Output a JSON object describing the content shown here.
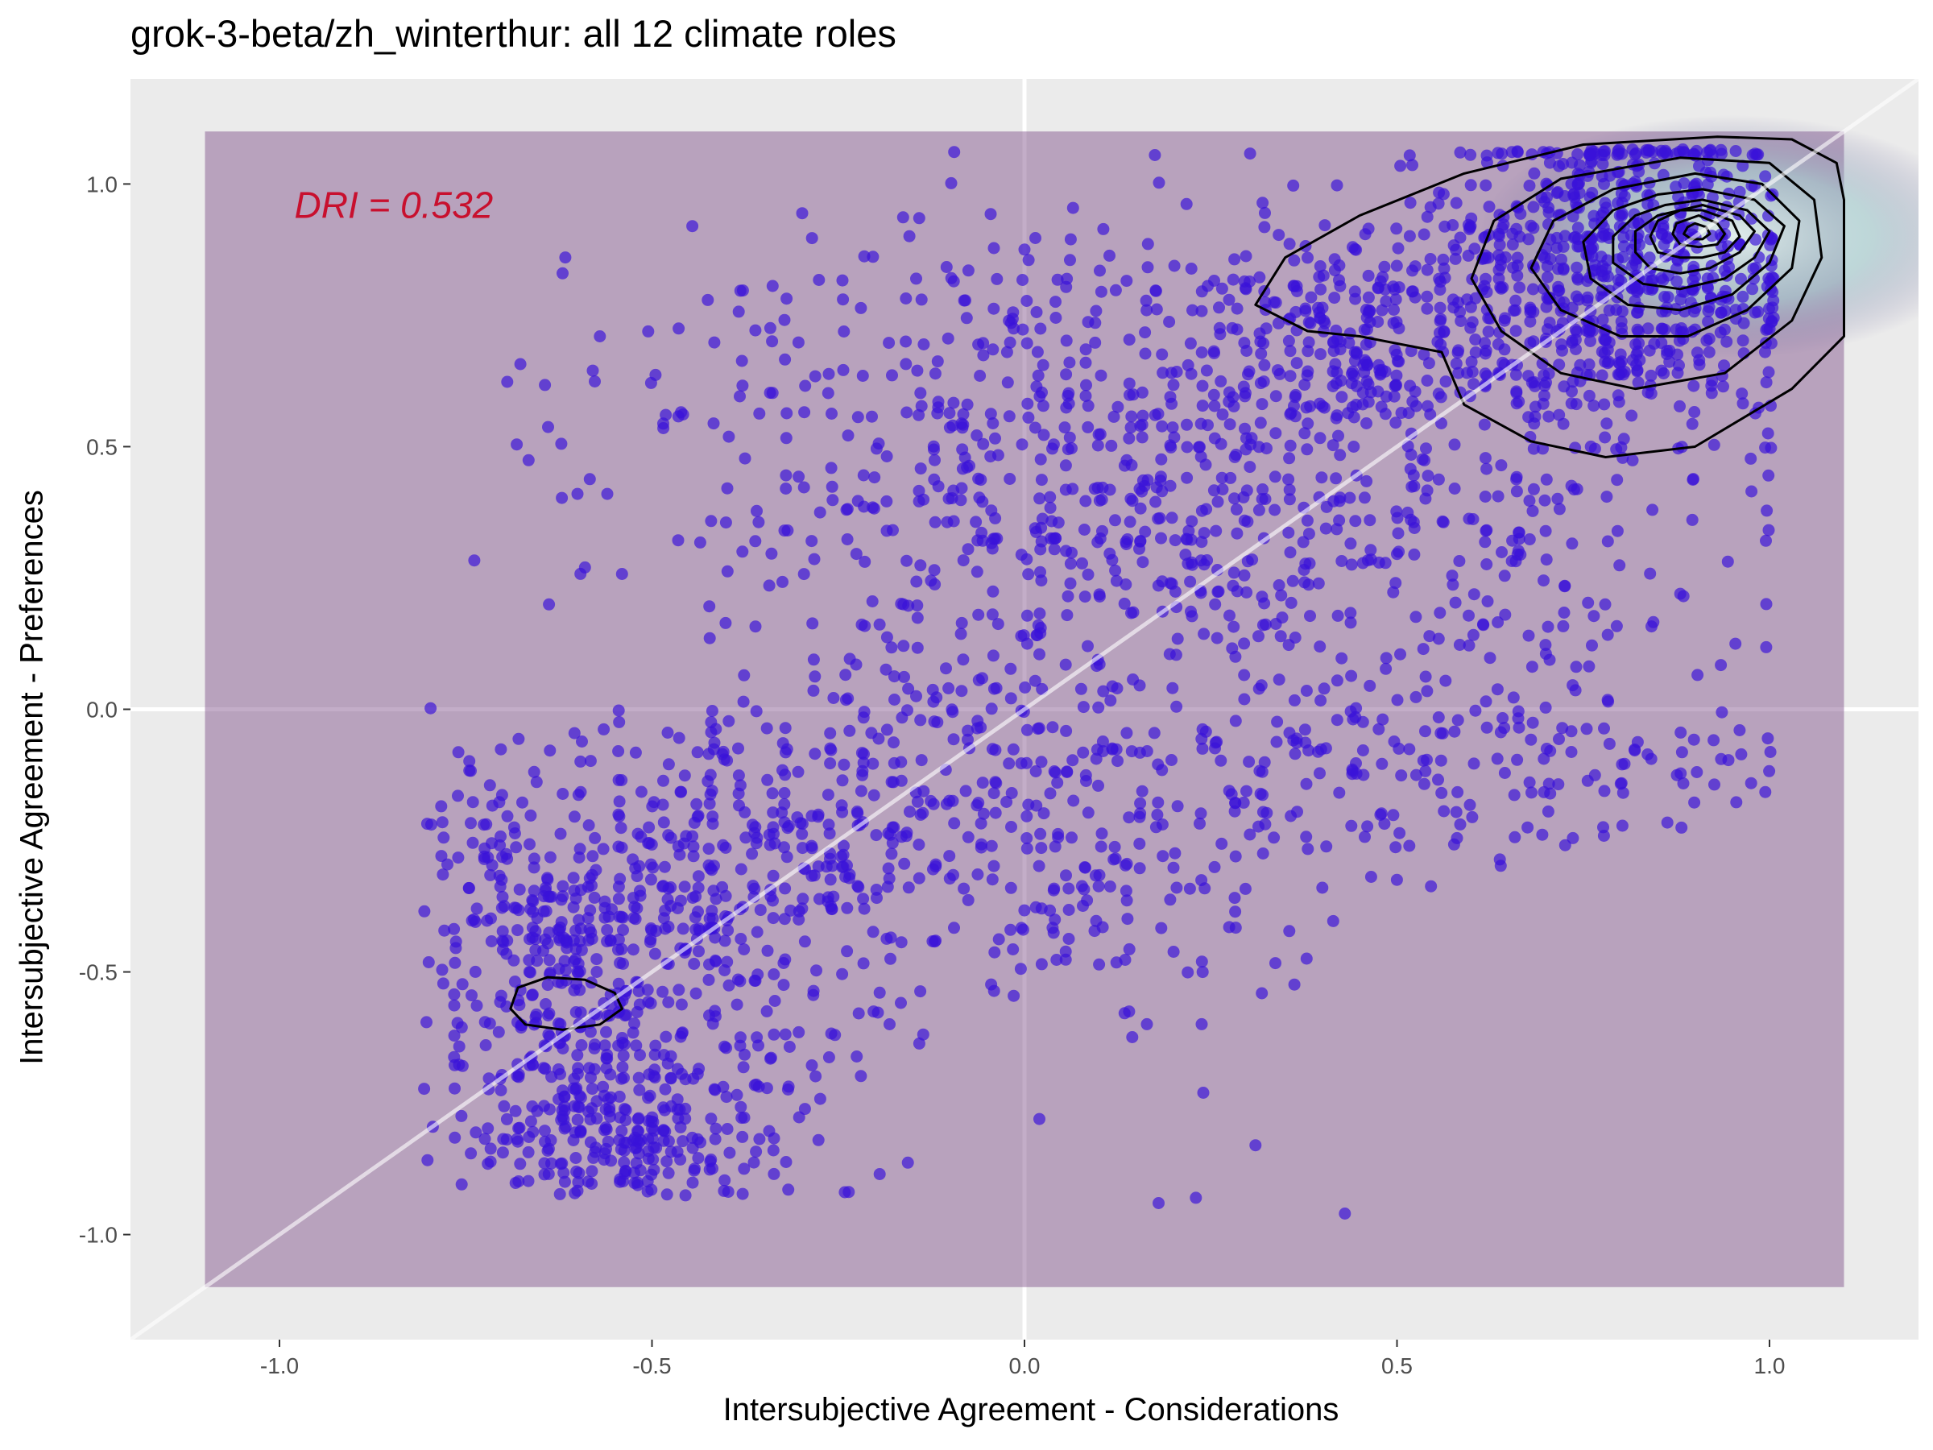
{
  "chart_data": {
    "type": "scatter",
    "title": "grok-3-beta/zh_winterthur: all 12 climate roles",
    "xlabel": "Intersubjective Agreement - Considerations",
    "ylabel": "Intersubjective Agreement - Preferences",
    "xlim": [
      -1.2,
      1.2
    ],
    "ylim": [
      -1.2,
      1.2
    ],
    "x_ticks": [
      "-1.0",
      "-0.5",
      "0.0",
      "0.5",
      "1.0"
    ],
    "y_ticks": [
      "-1.0",
      "-0.5",
      "0.0",
      "0.5",
      "1.0"
    ],
    "x_tick_values": [
      -1.0,
      -0.5,
      0.0,
      0.5,
      1.0
    ],
    "y_tick_values": [
      -1.0,
      -0.5,
      0.0,
      0.5,
      1.0
    ],
    "annotation": "DRI = 0.532",
    "annotation_pos": {
      "x": -0.98,
      "y": 0.96
    },
    "shaded_region": {
      "x": [
        -1.1,
        1.1
      ],
      "y": [
        -1.1,
        1.1
      ],
      "color": "#7b4a85"
    },
    "reference_line": {
      "slope": 1,
      "intercept": 0
    },
    "grid": true,
    "point_color": "#3a12d8",
    "clusters": [
      {
        "cx": 0.8,
        "cy": 0.85,
        "sx": 0.12,
        "sy": 0.15,
        "n": 700
      },
      {
        "cx": 0.45,
        "cy": 0.7,
        "sx": 0.13,
        "sy": 0.12,
        "n": 260
      },
      {
        "cx": 0.05,
        "cy": 0.62,
        "sx": 0.32,
        "sy": 0.16,
        "n": 360
      },
      {
        "cx": 0.05,
        "cy": 0.32,
        "sx": 0.22,
        "sy": 0.12,
        "n": 250
      },
      {
        "cx": 0.55,
        "cy": 0.25,
        "sx": 0.22,
        "sy": 0.2,
        "n": 260
      },
      {
        "cx": 0.55,
        "cy": -0.12,
        "sx": 0.22,
        "sy": 0.08,
        "n": 150
      },
      {
        "cx": -0.05,
        "cy": 0.05,
        "sx": 0.12,
        "sy": 0.1,
        "n": 70
      },
      {
        "cx": -0.15,
        "cy": -0.22,
        "sx": 0.22,
        "sy": 0.15,
        "n": 240
      },
      {
        "cx": 0.15,
        "cy": -0.35,
        "sx": 0.15,
        "sy": 0.15,
        "n": 100
      },
      {
        "cx": -0.4,
        "cy": -0.4,
        "sx": 0.12,
        "sy": 0.22,
        "n": 280
      },
      {
        "cx": -0.62,
        "cy": -0.52,
        "sx": 0.09,
        "sy": 0.16,
        "n": 340
      },
      {
        "cx": -0.55,
        "cy": -0.8,
        "sx": 0.12,
        "sy": 0.06,
        "n": 200
      },
      {
        "cx": -0.72,
        "cy": -0.22,
        "sx": 0.05,
        "sy": 0.1,
        "n": 40
      }
    ],
    "outliers": [
      {
        "x": -0.62,
        "y": 0.83
      },
      {
        "x": -0.57,
        "y": 0.71
      },
      {
        "x": -0.6,
        "y": 0.41
      },
      {
        "x": -0.56,
        "y": 0.41
      },
      {
        "x": -0.59,
        "y": 0.27
      },
      {
        "x": 0.18,
        "y": -0.94
      },
      {
        "x": 0.23,
        "y": -0.93
      },
      {
        "x": 0.43,
        "y": -0.96
      },
      {
        "x": 0.31,
        "y": -0.83
      },
      {
        "x": 0.02,
        "y": -0.78
      },
      {
        "x": 0.24,
        "y": -0.73
      }
    ],
    "density_contours": [
      {
        "points": [
          [
            0.93,
            1.09
          ],
          [
            1.03,
            1.085
          ],
          [
            1.09,
            1.04
          ],
          [
            1.1,
            0.97
          ],
          [
            1.1,
            0.86
          ],
          [
            1.1,
            0.71
          ],
          [
            1.03,
            0.61
          ],
          [
            0.9,
            0.5
          ],
          [
            0.78,
            0.48
          ],
          [
            0.68,
            0.51
          ],
          [
            0.59,
            0.58
          ],
          [
            0.56,
            0.68
          ],
          [
            0.45,
            0.71
          ],
          [
            0.38,
            0.72
          ],
          [
            0.31,
            0.77
          ],
          [
            0.35,
            0.86
          ],
          [
            0.45,
            0.94
          ],
          [
            0.59,
            1.02
          ],
          [
            0.75,
            1.075
          ]
        ]
      },
      {
        "points": [
          [
            0.88,
            1.05
          ],
          [
            1.0,
            1.04
          ],
          [
            1.06,
            0.97
          ],
          [
            1.07,
            0.86
          ],
          [
            1.03,
            0.74
          ],
          [
            0.94,
            0.64
          ],
          [
            0.82,
            0.61
          ],
          [
            0.72,
            0.64
          ],
          [
            0.64,
            0.72
          ],
          [
            0.6,
            0.82
          ],
          [
            0.63,
            0.93
          ],
          [
            0.72,
            1.01
          ]
        ]
      },
      {
        "points": [
          [
            0.9,
            1.02
          ],
          [
            0.99,
            1.0
          ],
          [
            1.04,
            0.93
          ],
          [
            1.03,
            0.84
          ],
          [
            0.97,
            0.76
          ],
          [
            0.89,
            0.71
          ],
          [
            0.8,
            0.71
          ],
          [
            0.72,
            0.76
          ],
          [
            0.68,
            0.84
          ],
          [
            0.71,
            0.93
          ],
          [
            0.79,
            0.99
          ]
        ]
      },
      {
        "points": [
          [
            0.91,
            0.99
          ],
          [
            0.98,
            0.97
          ],
          [
            1.02,
            0.92
          ],
          [
            1.0,
            0.85
          ],
          [
            0.95,
            0.79
          ],
          [
            0.88,
            0.76
          ],
          [
            0.81,
            0.77
          ],
          [
            0.76,
            0.82
          ],
          [
            0.75,
            0.89
          ],
          [
            0.79,
            0.95
          ],
          [
            0.85,
            0.98
          ]
        ]
      },
      {
        "points": [
          [
            0.91,
            0.97
          ],
          [
            0.97,
            0.95
          ],
          [
            1.0,
            0.91
          ],
          [
            0.98,
            0.86
          ],
          [
            0.94,
            0.82
          ],
          [
            0.88,
            0.8
          ],
          [
            0.83,
            0.81
          ],
          [
            0.79,
            0.85
          ],
          [
            0.79,
            0.9
          ],
          [
            0.82,
            0.94
          ],
          [
            0.86,
            0.96
          ]
        ]
      },
      {
        "points": [
          [
            0.91,
            0.96
          ],
          [
            0.96,
            0.94
          ],
          [
            0.98,
            0.91
          ],
          [
            0.96,
            0.87
          ],
          [
            0.92,
            0.84
          ],
          [
            0.88,
            0.83
          ],
          [
            0.84,
            0.84
          ],
          [
            0.82,
            0.87
          ],
          [
            0.82,
            0.91
          ],
          [
            0.85,
            0.94
          ]
        ]
      },
      {
        "points": [
          [
            0.91,
            0.95
          ],
          [
            0.95,
            0.93
          ],
          [
            0.96,
            0.9
          ],
          [
            0.94,
            0.87
          ],
          [
            0.91,
            0.86
          ],
          [
            0.88,
            0.86
          ],
          [
            0.85,
            0.87
          ],
          [
            0.84,
            0.9
          ],
          [
            0.85,
            0.93
          ],
          [
            0.88,
            0.95
          ]
        ]
      },
      {
        "points": [
          [
            0.905,
            0.94
          ],
          [
            0.93,
            0.925
          ],
          [
            0.94,
            0.905
          ],
          [
            0.93,
            0.885
          ],
          [
            0.905,
            0.88
          ],
          [
            0.88,
            0.885
          ],
          [
            0.87,
            0.905
          ],
          [
            0.875,
            0.925
          ]
        ]
      },
      {
        "points": [
          [
            0.9,
            0.925
          ],
          [
            0.915,
            0.918
          ],
          [
            0.92,
            0.905
          ],
          [
            0.91,
            0.895
          ],
          [
            0.895,
            0.895
          ],
          [
            0.885,
            0.905
          ],
          [
            0.89,
            0.918
          ]
        ]
      },
      {
        "points": [
          [
            -0.64,
            -0.51
          ],
          [
            -0.59,
            -0.515
          ],
          [
            -0.55,
            -0.54
          ],
          [
            -0.54,
            -0.57
          ],
          [
            -0.57,
            -0.6
          ],
          [
            -0.62,
            -0.61
          ],
          [
            -0.67,
            -0.6
          ],
          [
            -0.69,
            -0.57
          ],
          [
            -0.68,
            -0.53
          ]
        ]
      }
    ]
  }
}
